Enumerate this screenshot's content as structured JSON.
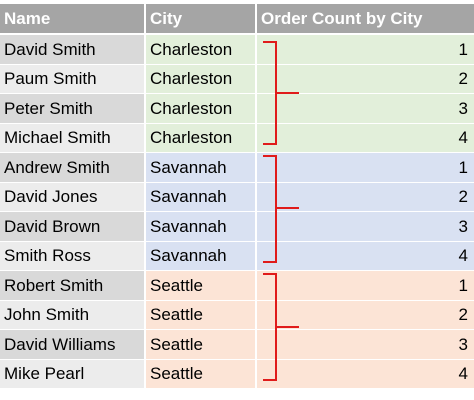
{
  "table": {
    "header": [
      "Name",
      "City",
      "Order Count by City"
    ],
    "rows": [
      [
        "David Smith",
        "Charleston",
        1
      ],
      [
        "Paum Smith",
        "Charleston",
        2
      ],
      [
        "Peter Smith",
        "Charleston",
        3
      ],
      [
        "Michael Smith",
        "Charleston",
        4
      ],
      [
        "Andrew Smith",
        "Savannah",
        1
      ],
      [
        "David Jones",
        "Savannah",
        2
      ],
      [
        "David Brown",
        "Savannah",
        3
      ],
      [
        "Smith Ross",
        "Savannah",
        4
      ],
      [
        "Robert Smith",
        "Seattle",
        1
      ],
      [
        "John Smith",
        "Seattle",
        2
      ],
      [
        "David Williams",
        "Seattle",
        3
      ],
      [
        "Mike Pearl",
        "Seattle",
        4
      ]
    ]
  }
}
